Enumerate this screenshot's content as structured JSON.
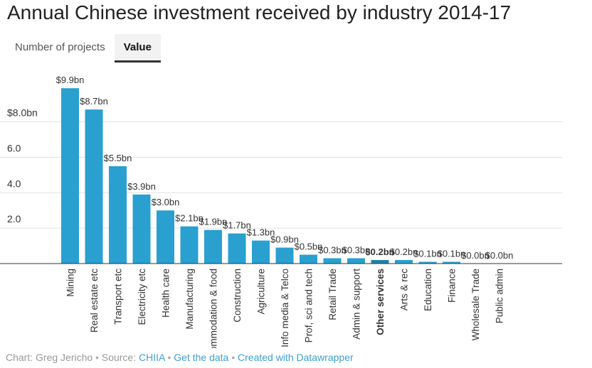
{
  "title": "Annual Chinese investment received by industry 2014-17",
  "tabs": [
    {
      "label": "Number of projects",
      "active": false
    },
    {
      "label": "Value",
      "active": true
    }
  ],
  "footer": {
    "credit": "Chart: Greg Jericho",
    "source_label": "Source:",
    "source_name": "CHIIA",
    "separator": "•",
    "get_data": "Get the data",
    "created_with": "Created with Datawrapper"
  },
  "colors": {
    "bar": "#29a0cf",
    "bar_highlight": "#1f82a8",
    "gridline": "#e0e0e0",
    "text": "#333333"
  },
  "chart_data": {
    "type": "bar",
    "title": "Annual Chinese investment received by industry 2014-17",
    "xlabel": "",
    "ylabel": "",
    "ylim": [
      0,
      10
    ],
    "grid": true,
    "yticks": [
      {
        "value": 2,
        "label": "2.0"
      },
      {
        "value": 4,
        "label": "4.0"
      },
      {
        "value": 6,
        "label": "6.0"
      },
      {
        "value": 8,
        "label": "$8.0bn"
      }
    ],
    "categories": [
      "Mining",
      "Real estate etc",
      "Transport etc",
      "Electricity etc",
      "Health care",
      "Manufacturing",
      "Accommodation & food",
      "Construction",
      "Agriculture",
      "Info media & Telco",
      "Prof, sci and tech",
      "Retail Trade",
      "Admin & support",
      "Other services",
      "Arts & rec",
      "Education",
      "Finance",
      "Wholesale Trade",
      "Public admin"
    ],
    "values": [
      9.9,
      8.7,
      5.5,
      3.9,
      3.0,
      2.1,
      1.9,
      1.7,
      1.3,
      0.9,
      0.5,
      0.3,
      0.3,
      0.2,
      0.2,
      0.1,
      0.1,
      0.0,
      0.0
    ],
    "value_labels": [
      "$9.9bn",
      "$8.7bn",
      "$5.5bn",
      "$3.9bn",
      "$3.0bn",
      "$2.1bn",
      "$1.9bn",
      "$1.7bn",
      "$1.3bn",
      "$0.9bn",
      "$0.5bn",
      "$0.3bn",
      "$0.3bn",
      "$0.2bn",
      "$0.2bn",
      "$0.1bn",
      "$0.1bn",
      "$0.0bn",
      "$0.0bn"
    ],
    "highlight": "Other services"
  }
}
